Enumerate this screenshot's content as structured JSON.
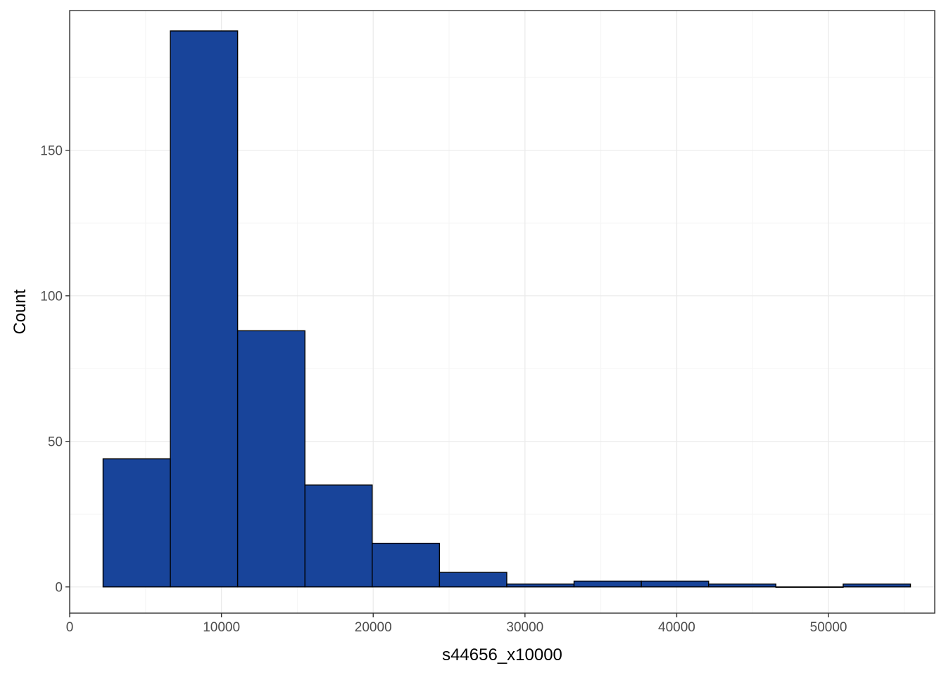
{
  "chart_data": {
    "type": "bar",
    "subtype": "histogram",
    "title": "",
    "xlabel": "s44656_x10000",
    "ylabel": "Count",
    "xlim": [
      0,
      57000
    ],
    "ylim": [
      -9,
      198
    ],
    "x_ticks": [
      0,
      10000,
      20000,
      30000,
      40000,
      50000
    ],
    "y_ticks": [
      0,
      50,
      100,
      150
    ],
    "grid": true,
    "legend": "none",
    "bins": [
      {
        "x0": 2200,
        "x1": 6633,
        "count": 44
      },
      {
        "x0": 6633,
        "x1": 11067,
        "count": 191
      },
      {
        "x0": 11067,
        "x1": 15500,
        "count": 88
      },
      {
        "x0": 15500,
        "x1": 19933,
        "count": 35
      },
      {
        "x0": 19933,
        "x1": 24367,
        "count": 15
      },
      {
        "x0": 24367,
        "x1": 28800,
        "count": 5
      },
      {
        "x0": 28800,
        "x1": 33233,
        "count": 1
      },
      {
        "x0": 33233,
        "x1": 37667,
        "count": 2
      },
      {
        "x0": 37667,
        "x1": 42100,
        "count": 2
      },
      {
        "x0": 42100,
        "x1": 46533,
        "count": 1
      },
      {
        "x0": 46533,
        "x1": 50967,
        "count": 0
      },
      {
        "x0": 50967,
        "x1": 55400,
        "count": 1
      }
    ],
    "colors": {
      "bar_fill": "#18449a",
      "bar_stroke": "#000000",
      "grid_major": "#ebebeb",
      "grid_minor": "#f5f5f5",
      "panel_border": "#333333",
      "tick_mark": "#333333"
    }
  }
}
